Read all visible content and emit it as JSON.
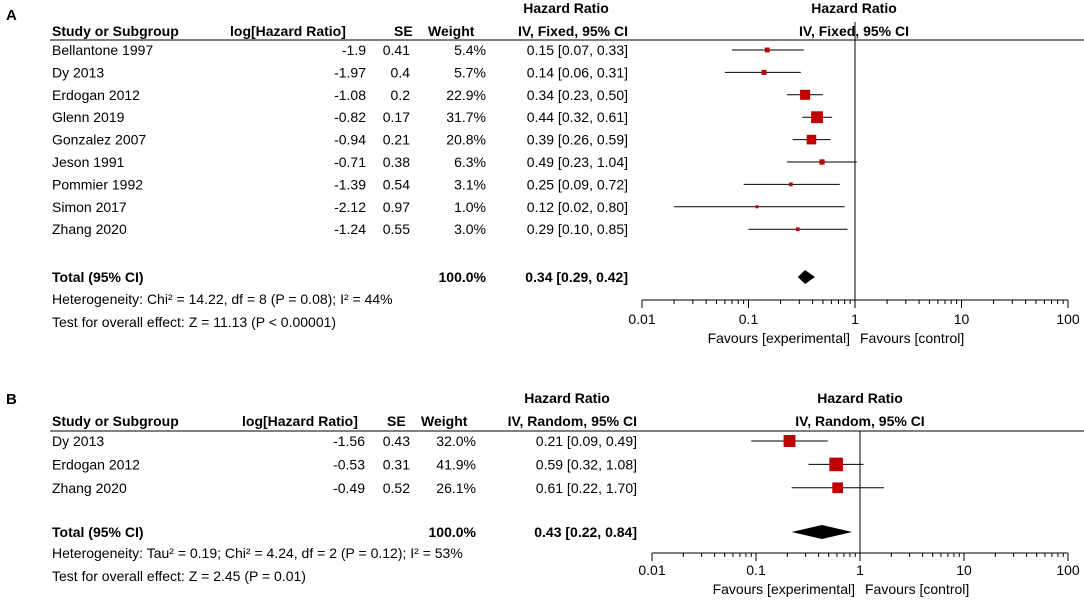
{
  "chart_data": [
    {
      "type": "forest",
      "panel": "A",
      "headers": {
        "study": "Study or Subgroup",
        "loghr": "log[Hazard Ratio]",
        "se": "SE",
        "weight": "Weight",
        "hr_title": "Hazard Ratio",
        "hr_method": "IV, Fixed, 95% CI",
        "plot_title": "Hazard Ratio",
        "plot_method": "IV, Fixed, 95% CI"
      },
      "studies": [
        {
          "name": "Bellantone 1997",
          "loghr": "-1.9",
          "se": "0.41",
          "weight": "5.4%",
          "ci": "0.15 [0.07, 0.33]",
          "hr": 0.15,
          "lo": 0.07,
          "hi": 0.33,
          "w": 5.4
        },
        {
          "name": "Dy 2013",
          "loghr": "-1.97",
          "se": "0.4",
          "weight": "5.7%",
          "ci": "0.14 [0.06, 0.31]",
          "hr": 0.14,
          "lo": 0.06,
          "hi": 0.31,
          "w": 5.7
        },
        {
          "name": "Erdogan 2012",
          "loghr": "-1.08",
          "se": "0.2",
          "weight": "22.9%",
          "ci": "0.34 [0.23, 0.50]",
          "hr": 0.34,
          "lo": 0.23,
          "hi": 0.5,
          "w": 22.9
        },
        {
          "name": "Glenn 2019",
          "loghr": "-0.82",
          "se": "0.17",
          "weight": "31.7%",
          "ci": "0.44 [0.32, 0.61]",
          "hr": 0.44,
          "lo": 0.32,
          "hi": 0.61,
          "w": 31.7
        },
        {
          "name": "Gonzalez 2007",
          "loghr": "-0.94",
          "se": "0.21",
          "weight": "20.8%",
          "ci": "0.39 [0.26, 0.59]",
          "hr": 0.39,
          "lo": 0.26,
          "hi": 0.59,
          "w": 20.8
        },
        {
          "name": "Jeson 1991",
          "loghr": "-0.71",
          "se": "0.38",
          "weight": "6.3%",
          "ci": "0.49 [0.23, 1.04]",
          "hr": 0.49,
          "lo": 0.23,
          "hi": 1.04,
          "w": 6.3
        },
        {
          "name": "Pommier 1992",
          "loghr": "-1.39",
          "se": "0.54",
          "weight": "3.1%",
          "ci": "0.25 [0.09, 0.72]",
          "hr": 0.25,
          "lo": 0.09,
          "hi": 0.72,
          "w": 3.1
        },
        {
          "name": "Simon 2017",
          "loghr": "-2.12",
          "se": "0.97",
          "weight": "1.0%",
          "ci": "0.12 [0.02, 0.80]",
          "hr": 0.12,
          "lo": 0.02,
          "hi": 0.8,
          "w": 1.0
        },
        {
          "name": "Zhang 2020",
          "loghr": "-1.24",
          "se": "0.55",
          "weight": "3.0%",
          "ci": "0.29 [0.10, 0.85]",
          "hr": 0.29,
          "lo": 0.1,
          "hi": 0.85,
          "w": 3.0
        }
      ],
      "total": {
        "label": "Total (95% CI)",
        "weight": "100.0%",
        "ci": "0.34 [0.29, 0.42]",
        "hr": 0.34,
        "lo": 0.29,
        "hi": 0.42
      },
      "heterogeneity": "Heterogeneity: Chi² = 14.22, df = 8 (P = 0.08); I² = 44%",
      "overall_effect": "Test for overall effect: Z = 11.13 (P < 0.00001)",
      "axis": {
        "scale": "log",
        "range": [
          0.01,
          100
        ],
        "ticks": [
          "0.01",
          "0.1",
          "1",
          "10",
          "100"
        ],
        "tick_values": [
          0.01,
          0.1,
          1,
          10,
          100
        ]
      },
      "favours_left": "Favours [experimental]",
      "favours_right": "Favours [control]"
    },
    {
      "type": "forest",
      "panel": "B",
      "headers": {
        "study": "Study or Subgroup",
        "loghr": "log[Hazard Ratio]",
        "se": "SE",
        "weight": "Weight",
        "hr_title": "Hazard Ratio",
        "hr_method": "IV, Random, 95% CI",
        "plot_title": "Hazard Ratio",
        "plot_method": "IV, Random, 95% CI"
      },
      "studies": [
        {
          "name": "Dy 2013",
          "loghr": "-1.56",
          "se": "0.43",
          "weight": "32.0%",
          "ci": "0.21 [0.09, 0.49]",
          "hr": 0.21,
          "lo": 0.09,
          "hi": 0.49,
          "w": 32.0
        },
        {
          "name": "Erdogan 2012",
          "loghr": "-0.53",
          "se": "0.31",
          "weight": "41.9%",
          "ci": "0.59 [0.32, 1.08]",
          "hr": 0.59,
          "lo": 0.32,
          "hi": 1.08,
          "w": 41.9
        },
        {
          "name": "Zhang 2020",
          "loghr": "-0.49",
          "se": "0.52",
          "weight": "26.1%",
          "ci": "0.61 [0.22, 1.70]",
          "hr": 0.61,
          "lo": 0.22,
          "hi": 1.7,
          "w": 26.1
        }
      ],
      "total": {
        "label": "Total (95% CI)",
        "weight": "100.0%",
        "ci": "0.43 [0.22, 0.84]",
        "hr": 0.43,
        "lo": 0.22,
        "hi": 0.84
      },
      "heterogeneity": "Heterogeneity: Tau² = 0.19; Chi² = 4.24, df = 2 (P = 0.12); I² = 53%",
      "overall_effect": "Test for overall effect: Z = 2.45 (P = 0.01)",
      "axis": {
        "scale": "log",
        "range": [
          0.01,
          100
        ],
        "ticks": [
          "0.01",
          "0.1",
          "1",
          "10",
          "100"
        ],
        "tick_values": [
          0.01,
          0.1,
          1,
          10,
          100
        ]
      },
      "favours_left": "Favours [experimental]",
      "favours_right": "Favours [control]"
    }
  ],
  "colors": {
    "marker": "#c00000",
    "line": "#000000",
    "diamond": "#000000"
  }
}
